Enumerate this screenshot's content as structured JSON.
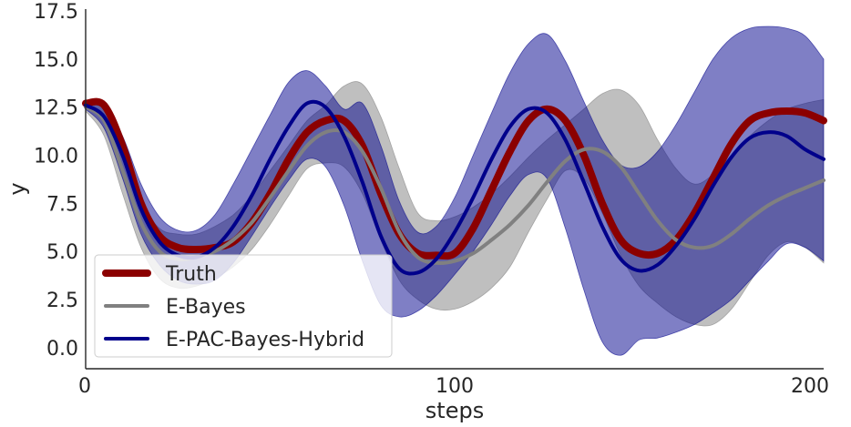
{
  "chart_data": {
    "type": "line",
    "xlabel": "steps",
    "ylabel": "y",
    "xlim": [
      0,
      200
    ],
    "ylim": [
      -1.1,
      17.6
    ],
    "xticks": [
      0,
      100,
      200
    ],
    "yticks": [
      0.0,
      2.5,
      5.0,
      7.5,
      10.0,
      12.5,
      15.0,
      17.5
    ],
    "xtick_labels": [
      "0",
      "100",
      "200"
    ],
    "ytick_labels": [
      "0.0",
      "2.5",
      "5.0",
      "7.5",
      "10.0",
      "12.5",
      "15.0",
      "17.5"
    ],
    "grid": false,
    "legend_position": "lower-left",
    "series": [
      {
        "name": "Truth",
        "color": "#8b0000",
        "x": [
          0,
          5,
          10,
          15,
          20,
          25,
          30,
          35,
          40,
          45,
          50,
          55,
          60,
          65,
          70,
          75,
          80,
          85,
          90,
          95,
          100,
          105,
          110,
          115,
          120,
          125,
          130,
          135,
          140,
          145,
          150,
          155,
          160,
          165,
          170,
          175,
          180,
          185,
          190,
          195,
          200
        ],
        "values": [
          12.7,
          12.6,
          10.5,
          7.5,
          5.8,
          5.2,
          5.1,
          5.2,
          5.5,
          6.5,
          8.0,
          9.8,
          11.2,
          11.8,
          11.8,
          10.5,
          8.0,
          5.9,
          4.9,
          4.8,
          4.9,
          6.2,
          8.2,
          10.2,
          11.8,
          12.4,
          11.8,
          10.0,
          7.5,
          5.6,
          4.9,
          4.9,
          5.6,
          7.0,
          8.8,
          10.6,
          11.8,
          12.2,
          12.3,
          12.2,
          11.8
        ]
      },
      {
        "name": "E-Bayes",
        "color": "#808080",
        "x": [
          0,
          5,
          10,
          15,
          20,
          25,
          30,
          35,
          40,
          45,
          50,
          55,
          60,
          65,
          70,
          75,
          80,
          85,
          90,
          95,
          100,
          105,
          110,
          115,
          120,
          125,
          130,
          135,
          140,
          145,
          150,
          155,
          160,
          165,
          170,
          175,
          180,
          185,
          190,
          195,
          200
        ],
        "values": [
          12.5,
          11.8,
          9.2,
          6.5,
          5.0,
          4.6,
          4.7,
          5.0,
          5.6,
          6.5,
          7.8,
          9.2,
          10.5,
          11.2,
          11.2,
          10.2,
          8.3,
          6.0,
          4.7,
          4.4,
          4.5,
          4.9,
          5.6,
          6.4,
          7.4,
          8.6,
          9.7,
          10.3,
          10.2,
          9.4,
          8.0,
          6.6,
          5.6,
          5.2,
          5.3,
          5.9,
          6.7,
          7.4,
          7.9,
          8.3,
          8.7
        ]
      },
      {
        "name": "E-PAC-Bayes-Hybrid",
        "color": "#00008b",
        "x": [
          0,
          5,
          10,
          15,
          20,
          25,
          30,
          35,
          40,
          45,
          50,
          55,
          60,
          65,
          70,
          75,
          80,
          85,
          90,
          95,
          100,
          105,
          110,
          115,
          120,
          125,
          130,
          135,
          140,
          145,
          150,
          155,
          160,
          165,
          170,
          175,
          180,
          185,
          190,
          195,
          200
        ],
        "values": [
          12.6,
          12.0,
          10.0,
          7.2,
          5.5,
          4.8,
          4.7,
          5.2,
          6.3,
          7.9,
          9.8,
          11.5,
          12.7,
          12.5,
          11.0,
          8.6,
          5.8,
          4.1,
          3.9,
          4.6,
          6.0,
          7.8,
          9.8,
          11.5,
          12.4,
          12.2,
          10.8,
          8.6,
          6.3,
          4.6,
          4.0,
          4.3,
          5.3,
          6.7,
          8.4,
          9.9,
          10.9,
          11.2,
          11.0,
          10.3,
          9.8
        ]
      }
    ],
    "bands": [
      {
        "series": "E-Bayes",
        "color": "#808080",
        "opacity": 0.5,
        "x": [
          0,
          5,
          10,
          15,
          20,
          25,
          30,
          35,
          40,
          45,
          50,
          55,
          60,
          65,
          70,
          75,
          80,
          85,
          90,
          95,
          100,
          105,
          110,
          115,
          120,
          125,
          130,
          135,
          140,
          145,
          150,
          155,
          160,
          165,
          170,
          175,
          180,
          185,
          190,
          195,
          200
        ],
        "lower": [
          12.3,
          11.0,
          8.0,
          5.2,
          3.6,
          3.1,
          3.2,
          3.6,
          4.2,
          5.1,
          6.4,
          7.9,
          9.3,
          9.6,
          9.4,
          8.0,
          5.6,
          3.5,
          2.5,
          2.0,
          2.0,
          2.4,
          3.1,
          4.2,
          6.0,
          7.7,
          9.2,
          8.8,
          7.0,
          4.8,
          3.2,
          2.3,
          1.6,
          1.2,
          1.2,
          2.0,
          3.4,
          4.8,
          5.5,
          5.2,
          4.4
        ],
        "upper": [
          12.7,
          12.4,
          10.3,
          7.6,
          6.2,
          5.9,
          5.9,
          6.3,
          6.9,
          7.9,
          9.2,
          10.5,
          11.8,
          12.6,
          13.6,
          13.7,
          12.0,
          9.3,
          7.0,
          6.6,
          6.8,
          7.3,
          8.0,
          8.9,
          9.9,
          10.8,
          11.6,
          12.4,
          13.2,
          13.4,
          12.6,
          10.8,
          9.3,
          8.5,
          9.0,
          10.0,
          11.0,
          11.8,
          12.4,
          12.7,
          12.9
        ]
      },
      {
        "series": "E-PAC-Bayes-Hybrid",
        "color": "#00008b",
        "opacity": 0.5,
        "x": [
          0,
          5,
          10,
          15,
          20,
          25,
          30,
          35,
          40,
          45,
          50,
          55,
          60,
          65,
          70,
          75,
          80,
          85,
          90,
          95,
          100,
          105,
          110,
          115,
          120,
          125,
          130,
          135,
          140,
          145,
          150,
          155,
          160,
          165,
          170,
          175,
          180,
          185,
          190,
          195,
          200
        ],
        "lower": [
          12.4,
          11.4,
          8.8,
          5.9,
          4.3,
          3.5,
          3.3,
          3.5,
          4.4,
          5.8,
          7.3,
          8.7,
          9.8,
          9.4,
          7.4,
          4.5,
          2.2,
          1.6,
          1.9,
          2.7,
          3.8,
          5.0,
          6.4,
          7.9,
          9.0,
          8.8,
          6.2,
          3.0,
          0.3,
          -0.4,
          0.4,
          0.5,
          0.8,
          1.2,
          1.8,
          2.5,
          3.5,
          4.5,
          5.4,
          5.2,
          4.5
        ],
        "upper": [
          12.8,
          12.6,
          11.0,
          8.5,
          6.8,
          6.1,
          6.1,
          6.9,
          8.5,
          10.3,
          12.1,
          13.8,
          14.4,
          13.6,
          12.4,
          12.7,
          10.5,
          7.6,
          6.0,
          6.3,
          7.8,
          10.0,
          12.2,
          14.3,
          15.8,
          16.3,
          14.9,
          12.8,
          10.8,
          9.5,
          9.4,
          10.2,
          11.6,
          13.3,
          15.0,
          16.1,
          16.6,
          16.7,
          16.6,
          16.2,
          15.0
        ]
      }
    ]
  }
}
